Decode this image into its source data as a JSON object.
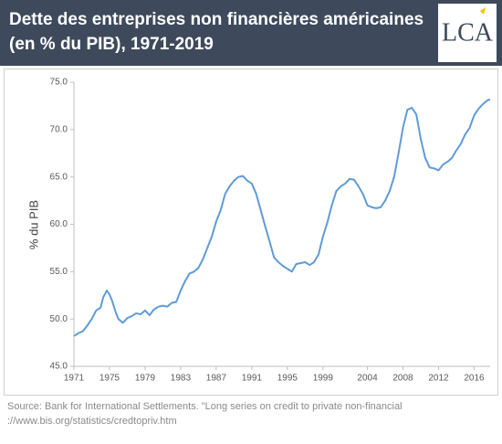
{
  "chart_data": {
    "type": "line",
    "title": [
      "Dette des entreprises non financières américaines",
      "(en % du PIB), 1971-2019"
    ],
    "logo": "LCA",
    "ylabel": "% du PIB",
    "source": [
      "Source: Bank for International Settlements. \"Long series on credit to private non-financial",
      "://www.bis.org/statistics/credtopriv.htm"
    ],
    "color": "#5f9bd6",
    "xlim": [
      1971,
      2017.8
    ],
    "ylim": [
      45,
      75
    ],
    "xticks": [
      1971,
      1975,
      1979,
      1983,
      1987,
      1991,
      1995,
      1999,
      2004,
      2008,
      2012,
      2016
    ],
    "yticks": [
      {
        "value": 45,
        "label": "45.0"
      },
      {
        "value": 50,
        "label": "50.0"
      },
      {
        "value": 55,
        "label": "55.0"
      },
      {
        "value": 60,
        "label": "60.0"
      },
      {
        "value": 65,
        "label": "65.0"
      },
      {
        "value": 70,
        "label": "70.0"
      },
      {
        "value": 75,
        "label": "75.0"
      }
    ],
    "x": [
      1971.0,
      1971.5,
      1972.0,
      1972.5,
      1973.0,
      1973.5,
      1974.0,
      1974.3,
      1974.7,
      1975.0,
      1975.3,
      1975.7,
      1976.0,
      1976.5,
      1977.0,
      1977.5,
      1978.0,
      1978.5,
      1979.0,
      1979.5,
      1980.0,
      1980.5,
      1981.0,
      1981.5,
      1982.0,
      1982.5,
      1983.0,
      1983.5,
      1984.0,
      1984.5,
      1985.0,
      1985.5,
      1986.0,
      1986.5,
      1987.0,
      1987.5,
      1988.0,
      1988.5,
      1989.0,
      1989.5,
      1990.0,
      1990.5,
      1991.0,
      1991.5,
      1992.0,
      1992.5,
      1993.0,
      1993.5,
      1994.0,
      1994.5,
      1995.0,
      1995.5,
      1996.0,
      1996.5,
      1997.0,
      1997.5,
      1998.0,
      1998.5,
      1999.0,
      1999.5,
      2000.0,
      2000.5,
      2001.0,
      2001.5,
      2002.0,
      2002.5,
      2003.0,
      2003.5,
      2004.0,
      2004.5,
      2005.0,
      2005.5,
      2006.0,
      2006.5,
      2007.0,
      2007.5,
      2008.0,
      2008.5,
      2009.0,
      2009.5,
      2010.0,
      2010.5,
      2011.0,
      2011.5,
      2012.0,
      2012.5,
      2013.0,
      2013.5,
      2014.0,
      2014.5,
      2015.0,
      2015.5,
      2016.0,
      2016.5,
      2017.0,
      2017.5,
      2017.8
    ],
    "values": [
      48.2,
      48.5,
      48.7,
      49.3,
      50.0,
      50.9,
      51.2,
      52.3,
      53.0,
      52.6,
      51.9,
      50.7,
      50.0,
      49.6,
      50.1,
      50.3,
      50.6,
      50.5,
      50.9,
      50.4,
      51.0,
      51.3,
      51.4,
      51.3,
      51.7,
      51.8,
      53.0,
      54.0,
      54.8,
      55.0,
      55.4,
      56.3,
      57.5,
      58.7,
      60.3,
      61.5,
      63.2,
      64.0,
      64.6,
      65.0,
      65.1,
      64.6,
      64.3,
      63.2,
      61.5,
      59.8,
      58.2,
      56.5,
      56.0,
      55.6,
      55.3,
      55.0,
      55.8,
      55.9,
      56.0,
      55.7,
      56.0,
      56.8,
      58.7,
      60.2,
      62.0,
      63.5,
      64.0,
      64.3,
      64.8,
      64.7,
      64.0,
      63.2,
      62.0,
      61.8,
      61.7,
      61.8,
      62.5,
      63.5,
      65.0,
      67.5,
      70.2,
      72.1,
      72.3,
      71.6,
      69.0,
      67.0,
      66.0,
      65.9,
      65.7,
      66.3,
      66.6,
      67.0,
      67.8,
      68.5,
      69.5,
      70.2,
      71.5,
      72.2,
      72.7,
      73.1,
      73.2
    ]
  }
}
